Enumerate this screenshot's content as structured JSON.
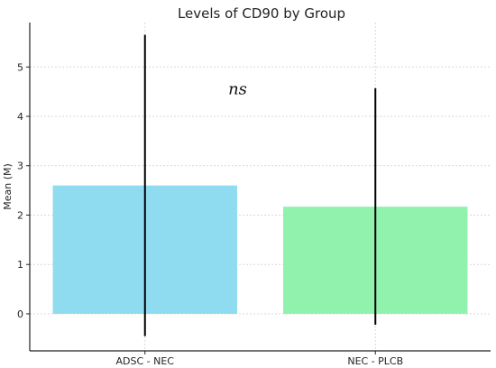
{
  "chart_data": {
    "type": "bar",
    "title": "Levels of CD90 by Group",
    "xlabel": "",
    "ylabel": "Mean (M)",
    "categories": [
      "ADSC - NEC",
      "NEC - PLCB"
    ],
    "values": [
      2.6,
      2.17
    ],
    "error_low": [
      -0.45,
      -0.22
    ],
    "error_high": [
      5.65,
      4.57
    ],
    "colors": [
      "#8fdcf0",
      "#90f2ac"
    ],
    "ylim": [
      -0.75,
      5.9
    ],
    "yticks": [
      0,
      1,
      2,
      3,
      4,
      5
    ],
    "grid": true,
    "annotation": "ns"
  }
}
